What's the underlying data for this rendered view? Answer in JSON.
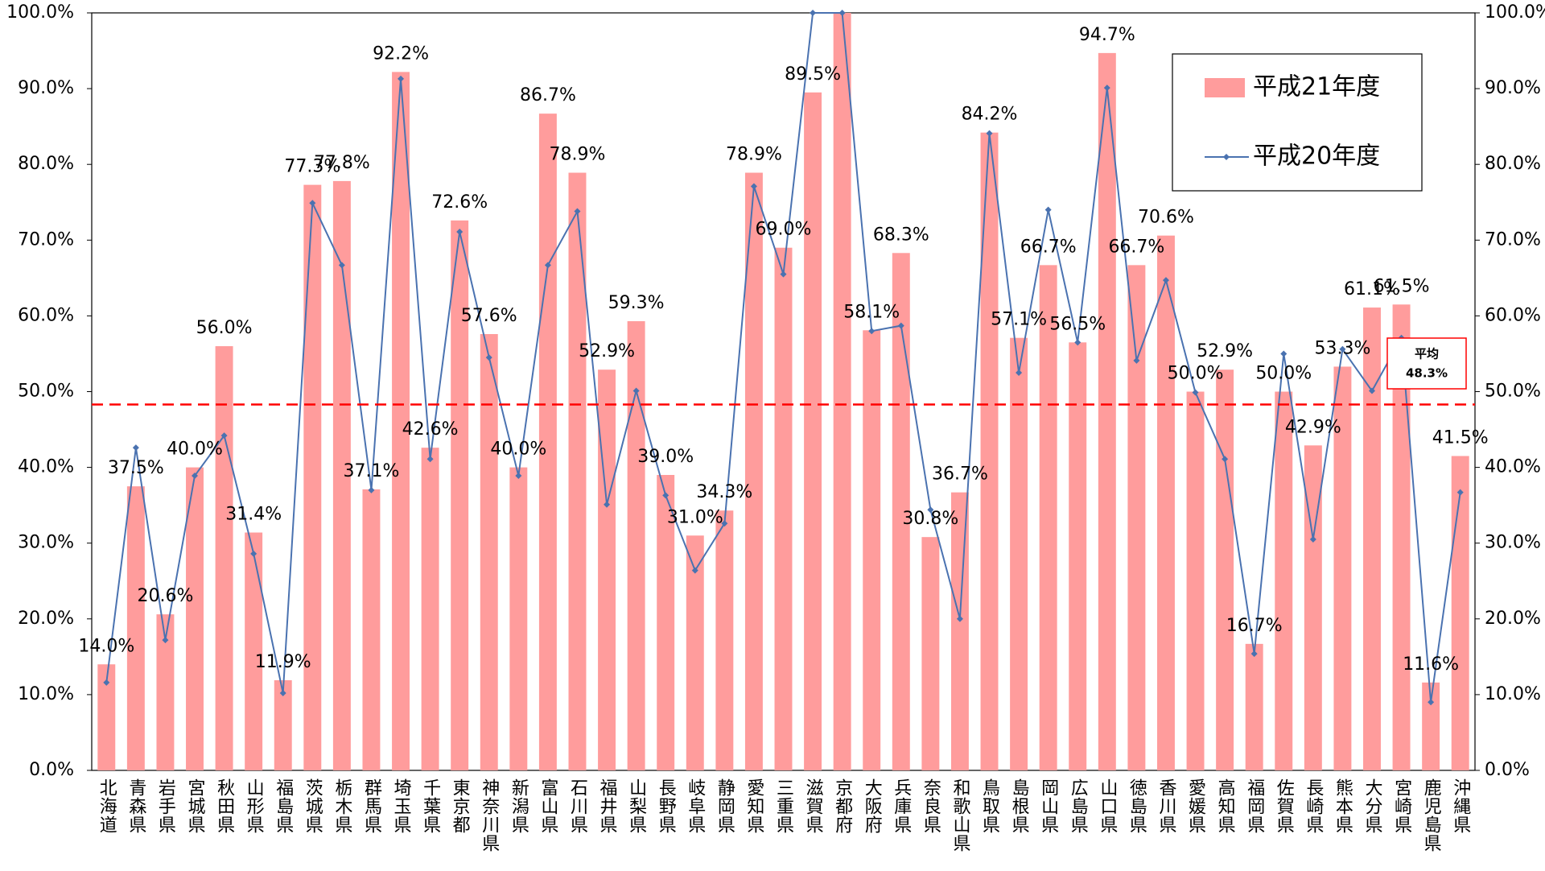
{
  "chart_data": {
    "type": "bar",
    "categories": [
      "北海道",
      "青森県",
      "岩手県",
      "宮城県",
      "秋田県",
      "山形県",
      "福島県",
      "茨城県",
      "栃木県",
      "群馬県",
      "埼玉県",
      "千葉県",
      "東京都",
      "神奈川県",
      "新潟県",
      "富山県",
      "石川県",
      "福井県",
      "山梨県",
      "長野県",
      "岐阜県",
      "静岡県",
      "愛知県",
      "三重県",
      "滋賀県",
      "京都府",
      "大阪府",
      "兵庫県",
      "奈良県",
      "和歌山県",
      "鳥取県",
      "島根県",
      "岡山県",
      "広島県",
      "山口県",
      "徳島県",
      "香川県",
      "愛媛県",
      "高知県",
      "福岡県",
      "佐賀県",
      "長崎県",
      "熊本県",
      "大分県",
      "宮崎県",
      "鹿児島県",
      "沖縄県"
    ],
    "series": [
      {
        "name": "平成21年度",
        "type": "bar",
        "color": "#ff9c9c",
        "values": [
          14.0,
          37.5,
          20.6,
          40.0,
          56.0,
          31.4,
          11.9,
          77.3,
          77.8,
          37.1,
          92.2,
          42.6,
          72.6,
          57.6,
          40.0,
          86.7,
          78.9,
          52.9,
          59.3,
          39.0,
          31.0,
          34.3,
          78.9,
          69.0,
          89.5,
          100.0,
          58.1,
          68.3,
          30.8,
          36.7,
          84.2,
          57.1,
          66.7,
          56.5,
          94.7,
          66.7,
          70.6,
          50.0,
          52.9,
          16.7,
          50.0,
          42.9,
          53.3,
          61.1,
          61.5,
          11.6,
          41.5
        ],
        "value_labels": [
          "14.0%",
          "37.5%",
          "20.6%",
          "40.0%",
          "56.0%",
          "31.4%",
          "11.9%",
          "77.3%",
          "77.8%",
          "37.1%",
          "92.2%",
          "42.6%",
          "72.6%",
          "57.6%",
          "40.0%",
          "86.7%",
          "78.9%",
          "52.9%",
          "59.3%",
          "39.0%",
          "31.0%",
          "34.3%",
          "78.9%",
          "69.0%",
          "89.5%",
          null,
          "58.1%",
          "68.3%",
          "30.8%",
          "36.7%",
          "84.2%",
          "57.1%",
          "66.7%",
          "56.5%",
          "94.7%",
          "66.7%",
          "70.6%",
          "50.0%",
          "52.9%",
          "16.7%",
          "50.0%",
          "42.9%",
          "53.3%",
          "61.1%",
          "61.5%",
          "11.6%",
          "41.5%"
        ]
      },
      {
        "name": "平成20年度",
        "type": "line",
        "axis": "y2",
        "color": "#4a72b0",
        "values": [
          11.6,
          42.6,
          17.2,
          38.9,
          44.2,
          28.6,
          10.2,
          74.9,
          66.7,
          37.0,
          91.3,
          41.1,
          71.1,
          54.5,
          38.9,
          66.7,
          73.8,
          35.1,
          50.1,
          36.3,
          26.4,
          32.6,
          77.1,
          65.5,
          100.0,
          100.0,
          58.0,
          58.7,
          34.4,
          20.0,
          84.1,
          52.5,
          74.0,
          56.5,
          90.1,
          54.1,
          64.7,
          49.9,
          41.1,
          15.4,
          55.0,
          30.5,
          55.6,
          50.1,
          57.1,
          9.0,
          36.7
        ]
      }
    ],
    "ylim": [
      0,
      100
    ],
    "yticks": [
      {
        "value": 0,
        "label": "0.0%"
      },
      {
        "value": 10,
        "label": "10.0%"
      },
      {
        "value": 20,
        "label": "20.0%"
      },
      {
        "value": 30,
        "label": "30.0%"
      },
      {
        "value": 40,
        "label": "40.0%"
      },
      {
        "value": 50,
        "label": "50.0%"
      },
      {
        "value": 60,
        "label": "60.0%"
      },
      {
        "value": 70,
        "label": "70.0%"
      },
      {
        "value": 80,
        "label": "80.0%"
      },
      {
        "value": 90,
        "label": "90.0%"
      },
      {
        "value": 100,
        "label": "100.0%"
      }
    ],
    "y2lim": [
      0,
      100
    ],
    "y2ticks": [
      {
        "value": 0,
        "label": "0.0%"
      },
      {
        "value": 10,
        "label": "10.0%"
      },
      {
        "value": 20,
        "label": "20.0%"
      },
      {
        "value": 30,
        "label": "30.0%"
      },
      {
        "value": 40,
        "label": "40.0%"
      },
      {
        "value": 50,
        "label": "50.0%"
      },
      {
        "value": 60,
        "label": "60.0%"
      },
      {
        "value": 70,
        "label": "70.0%"
      },
      {
        "value": 80,
        "label": "80.0%"
      },
      {
        "value": 90,
        "label": "90.0%"
      },
      {
        "value": 100,
        "label": "100.0%"
      }
    ],
    "average": {
      "text": "平均",
      "value": 48.3,
      "label": "48.3%",
      "color": "#ff0000"
    },
    "legend": "top-right"
  }
}
